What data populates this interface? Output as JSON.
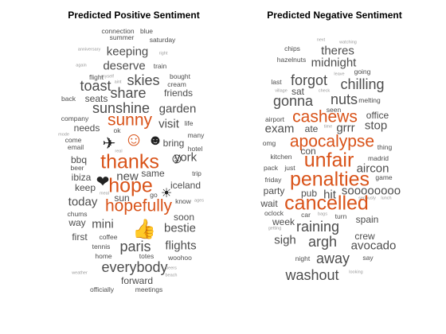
{
  "titles": {
    "positive": "Predicted Positive Sentiment",
    "negative": "Predicted Negative Sentiment"
  },
  "colors": {
    "highlight": "#d95319",
    "text": "#4d4d4d",
    "light": "#9a9a9a"
  },
  "positive_words": [
    {
      "text": "connection",
      "w": "s"
    },
    {
      "text": "blue",
      "w": "s"
    },
    {
      "text": "summer",
      "w": "s"
    },
    {
      "text": "saturday",
      "w": "s"
    },
    {
      "text": "keeping",
      "w": "l"
    },
    {
      "text": "anniversary",
      "w": "xs"
    },
    {
      "text": "right",
      "w": "xs"
    },
    {
      "text": "deserve",
      "w": "l"
    },
    {
      "text": "train",
      "w": "s"
    },
    {
      "text": "again",
      "w": "xs"
    },
    {
      "text": "skies",
      "w": "xl"
    },
    {
      "text": "bought",
      "w": "s"
    },
    {
      "text": "flight",
      "w": "s"
    },
    {
      "text": "myself",
      "w": "xs"
    },
    {
      "text": "cream",
      "w": "s"
    },
    {
      "text": "toast",
      "w": "xl"
    },
    {
      "text": "aint",
      "w": "xs"
    },
    {
      "text": "share",
      "w": "xl"
    },
    {
      "text": "friends",
      "w": "m"
    },
    {
      "text": "back",
      "w": "s"
    },
    {
      "text": "seats",
      "w": "m"
    },
    {
      "text": "sunshine",
      "w": "xl"
    },
    {
      "text": "garden",
      "w": "l"
    },
    {
      "text": "company",
      "w": "s"
    },
    {
      "text": "sunny",
      "w": "h"
    },
    {
      "text": "visit",
      "w": "l"
    },
    {
      "text": "life",
      "w": "s"
    },
    {
      "text": "needs",
      "w": "m"
    },
    {
      "text": "ok",
      "w": "s"
    },
    {
      "text": "many",
      "w": "s"
    },
    {
      "text": "mode",
      "w": "xs"
    },
    {
      "text": "come",
      "w": "s"
    },
    {
      "text": "bring",
      "w": "m"
    },
    {
      "text": "email",
      "w": "s"
    },
    {
      "text": "hotel",
      "w": "s"
    },
    {
      "text": "bbq",
      "w": "m"
    },
    {
      "text": "real",
      "w": "xs"
    },
    {
      "text": "york",
      "w": "l"
    },
    {
      "text": "thanks",
      "w": "xh"
    },
    {
      "text": "beer",
      "w": "s"
    },
    {
      "text": "ibiza",
      "w": "m"
    },
    {
      "text": "new",
      "w": "l"
    },
    {
      "text": "same",
      "w": "m"
    },
    {
      "text": "trip",
      "w": "s"
    },
    {
      "text": "keep",
      "w": "m"
    },
    {
      "text": "hope",
      "w": "xh"
    },
    {
      "text": "iceland",
      "w": "m"
    },
    {
      "text": "meal",
      "w": "xs"
    },
    {
      "text": "sun",
      "w": "m"
    },
    {
      "text": "go",
      "w": "s"
    },
    {
      "text": "know",
      "w": "s"
    },
    {
      "text": "ages",
      "w": "xs"
    },
    {
      "text": "today",
      "w": "l"
    },
    {
      "text": "hopefully",
      "w": "h"
    },
    {
      "text": "chums",
      "w": "s"
    },
    {
      "text": "soon",
      "w": "m"
    },
    {
      "text": "way",
      "w": "m"
    },
    {
      "text": "mini",
      "w": "l"
    },
    {
      "text": "bestie",
      "w": "l"
    },
    {
      "text": "first",
      "w": "m"
    },
    {
      "text": "coffee",
      "w": "s"
    },
    {
      "text": "tennis",
      "w": "s"
    },
    {
      "text": "paris",
      "w": "xl"
    },
    {
      "text": "flights",
      "w": "l"
    },
    {
      "text": "home",
      "w": "s"
    },
    {
      "text": "totes",
      "w": "s"
    },
    {
      "text": "woohoo",
      "w": "s"
    },
    {
      "text": "everybody",
      "w": "xl"
    },
    {
      "text": "beers",
      "w": "xs"
    },
    {
      "text": "weather",
      "w": "xs"
    },
    {
      "text": "beach",
      "w": "xs"
    },
    {
      "text": "forward",
      "w": "m"
    },
    {
      "text": "officially",
      "w": "s"
    },
    {
      "text": "meetings",
      "w": "s"
    }
  ],
  "positive_emojis": [
    {
      "name": "smiling-face-icon",
      "glyph": "☺"
    },
    {
      "name": "grinning-face-icon",
      "glyph": "☻"
    },
    {
      "name": "airplane-icon",
      "glyph": "✈"
    },
    {
      "name": "slightly-smiling-face-icon",
      "glyph": "☺"
    },
    {
      "name": "heart-suit-icon",
      "glyph": "❤"
    },
    {
      "name": "sun-icon",
      "glyph": "☀"
    },
    {
      "name": "thumbs-up-icon",
      "glyph": "👍"
    }
  ],
  "negative_words": [
    {
      "text": "next",
      "w": "xs"
    },
    {
      "text": "watching",
      "w": "xs"
    },
    {
      "text": "chips",
      "w": "s"
    },
    {
      "text": "theres",
      "w": "l"
    },
    {
      "text": "hazelnuts",
      "w": "s"
    },
    {
      "text": "midnight",
      "w": "l"
    },
    {
      "text": "going",
      "w": "s"
    },
    {
      "text": "forgot",
      "w": "xl"
    },
    {
      "text": "leave",
      "w": "xs"
    },
    {
      "text": "last",
      "w": "s"
    },
    {
      "text": "chilling",
      "w": "xl"
    },
    {
      "text": "village",
      "w": "xs"
    },
    {
      "text": "sat",
      "w": "m"
    },
    {
      "text": "check",
      "w": "xs"
    },
    {
      "text": "melting",
      "w": "s"
    },
    {
      "text": "gonna",
      "w": "xl"
    },
    {
      "text": "nuts",
      "w": "xl"
    },
    {
      "text": "seen",
      "w": "s"
    },
    {
      "text": "office",
      "w": "m"
    },
    {
      "text": "airport",
      "w": "s"
    },
    {
      "text": "cashews",
      "w": "h"
    },
    {
      "text": "exam",
      "w": "l"
    },
    {
      "text": "ate",
      "w": "m"
    },
    {
      "text": "time",
      "w": "xs"
    },
    {
      "text": "grrr",
      "w": "l"
    },
    {
      "text": "stop",
      "w": "l"
    },
    {
      "text": "omg",
      "w": "s"
    },
    {
      "text": "apocalypse",
      "w": "h"
    },
    {
      "text": "thing",
      "w": "s"
    },
    {
      "text": "con",
      "w": "m"
    },
    {
      "text": "kitchen",
      "w": "s"
    },
    {
      "text": "unfair",
      "w": "xh"
    },
    {
      "text": "madrid",
      "w": "s"
    },
    {
      "text": "pack",
      "w": "s"
    },
    {
      "text": "just",
      "w": "s"
    },
    {
      "text": "aircon",
      "w": "l"
    },
    {
      "text": "friday",
      "w": "s"
    },
    {
      "text": "penalties",
      "w": "xh"
    },
    {
      "text": "game",
      "w": "s"
    },
    {
      "text": "party",
      "w": "m"
    },
    {
      "text": "pub",
      "w": "m"
    },
    {
      "text": "hit",
      "w": "l"
    },
    {
      "text": "soooooooo",
      "w": "l"
    },
    {
      "text": "seriously",
      "w": "xs"
    },
    {
      "text": "lunch",
      "w": "xs"
    },
    {
      "text": "wait",
      "w": "m"
    },
    {
      "text": "cancelled",
      "w": "xh"
    },
    {
      "text": "oclock",
      "w": "s"
    },
    {
      "text": "car",
      "w": "s"
    },
    {
      "text": "bags",
      "w": "xs"
    },
    {
      "text": "turn",
      "w": "s"
    },
    {
      "text": "week",
      "w": "m"
    },
    {
      "text": "getting",
      "w": "xs"
    },
    {
      "text": "raining",
      "w": "xl"
    },
    {
      "text": "spain",
      "w": "m"
    },
    {
      "text": "sigh",
      "w": "l"
    },
    {
      "text": "argh",
      "w": "xl"
    },
    {
      "text": "crew",
      "w": "m"
    },
    {
      "text": "avocado",
      "w": "l"
    },
    {
      "text": "night",
      "w": "s"
    },
    {
      "text": "away",
      "w": "xl"
    },
    {
      "text": "say",
      "w": "s"
    },
    {
      "text": "washout",
      "w": "xl"
    },
    {
      "text": "looking",
      "w": "xs"
    }
  ]
}
